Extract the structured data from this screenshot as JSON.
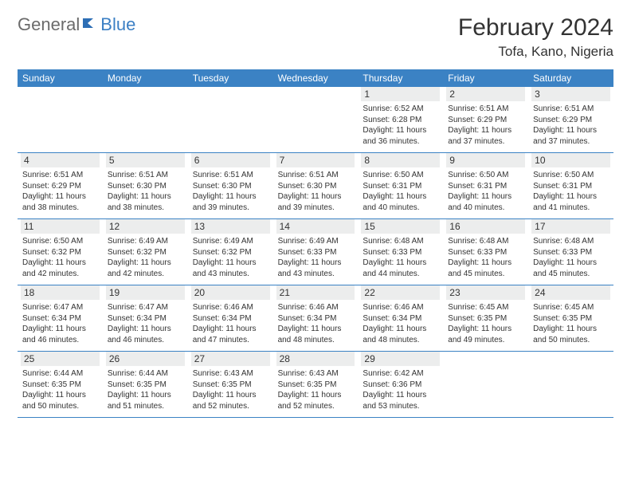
{
  "logo": {
    "part1": "General",
    "part2": "Blue"
  },
  "title": "February 2024",
  "location": "Tofa, Kano, Nigeria",
  "colors": {
    "header_bg": "#3b82c4",
    "header_text": "#ffffff",
    "daynum_bg": "#eceded",
    "border": "#3b82c4",
    "logo_gray": "#6b6b6b",
    "logo_blue": "#3b7fc4"
  },
  "day_headers": [
    "Sunday",
    "Monday",
    "Tuesday",
    "Wednesday",
    "Thursday",
    "Friday",
    "Saturday"
  ],
  "weeks": [
    [
      {
        "blank": true
      },
      {
        "blank": true
      },
      {
        "blank": true
      },
      {
        "blank": true
      },
      {
        "num": "1",
        "sunrise": "Sunrise: 6:52 AM",
        "sunset": "Sunset: 6:28 PM",
        "daylight": "Daylight: 11 hours and 36 minutes."
      },
      {
        "num": "2",
        "sunrise": "Sunrise: 6:51 AM",
        "sunset": "Sunset: 6:29 PM",
        "daylight": "Daylight: 11 hours and 37 minutes."
      },
      {
        "num": "3",
        "sunrise": "Sunrise: 6:51 AM",
        "sunset": "Sunset: 6:29 PM",
        "daylight": "Daylight: 11 hours and 37 minutes."
      }
    ],
    [
      {
        "num": "4",
        "sunrise": "Sunrise: 6:51 AM",
        "sunset": "Sunset: 6:29 PM",
        "daylight": "Daylight: 11 hours and 38 minutes."
      },
      {
        "num": "5",
        "sunrise": "Sunrise: 6:51 AM",
        "sunset": "Sunset: 6:30 PM",
        "daylight": "Daylight: 11 hours and 38 minutes."
      },
      {
        "num": "6",
        "sunrise": "Sunrise: 6:51 AM",
        "sunset": "Sunset: 6:30 PM",
        "daylight": "Daylight: 11 hours and 39 minutes."
      },
      {
        "num": "7",
        "sunrise": "Sunrise: 6:51 AM",
        "sunset": "Sunset: 6:30 PM",
        "daylight": "Daylight: 11 hours and 39 minutes."
      },
      {
        "num": "8",
        "sunrise": "Sunrise: 6:50 AM",
        "sunset": "Sunset: 6:31 PM",
        "daylight": "Daylight: 11 hours and 40 minutes."
      },
      {
        "num": "9",
        "sunrise": "Sunrise: 6:50 AM",
        "sunset": "Sunset: 6:31 PM",
        "daylight": "Daylight: 11 hours and 40 minutes."
      },
      {
        "num": "10",
        "sunrise": "Sunrise: 6:50 AM",
        "sunset": "Sunset: 6:31 PM",
        "daylight": "Daylight: 11 hours and 41 minutes."
      }
    ],
    [
      {
        "num": "11",
        "sunrise": "Sunrise: 6:50 AM",
        "sunset": "Sunset: 6:32 PM",
        "daylight": "Daylight: 11 hours and 42 minutes."
      },
      {
        "num": "12",
        "sunrise": "Sunrise: 6:49 AM",
        "sunset": "Sunset: 6:32 PM",
        "daylight": "Daylight: 11 hours and 42 minutes."
      },
      {
        "num": "13",
        "sunrise": "Sunrise: 6:49 AM",
        "sunset": "Sunset: 6:32 PM",
        "daylight": "Daylight: 11 hours and 43 minutes."
      },
      {
        "num": "14",
        "sunrise": "Sunrise: 6:49 AM",
        "sunset": "Sunset: 6:33 PM",
        "daylight": "Daylight: 11 hours and 43 minutes."
      },
      {
        "num": "15",
        "sunrise": "Sunrise: 6:48 AM",
        "sunset": "Sunset: 6:33 PM",
        "daylight": "Daylight: 11 hours and 44 minutes."
      },
      {
        "num": "16",
        "sunrise": "Sunrise: 6:48 AM",
        "sunset": "Sunset: 6:33 PM",
        "daylight": "Daylight: 11 hours and 45 minutes."
      },
      {
        "num": "17",
        "sunrise": "Sunrise: 6:48 AM",
        "sunset": "Sunset: 6:33 PM",
        "daylight": "Daylight: 11 hours and 45 minutes."
      }
    ],
    [
      {
        "num": "18",
        "sunrise": "Sunrise: 6:47 AM",
        "sunset": "Sunset: 6:34 PM",
        "daylight": "Daylight: 11 hours and 46 minutes."
      },
      {
        "num": "19",
        "sunrise": "Sunrise: 6:47 AM",
        "sunset": "Sunset: 6:34 PM",
        "daylight": "Daylight: 11 hours and 46 minutes."
      },
      {
        "num": "20",
        "sunrise": "Sunrise: 6:46 AM",
        "sunset": "Sunset: 6:34 PM",
        "daylight": "Daylight: 11 hours and 47 minutes."
      },
      {
        "num": "21",
        "sunrise": "Sunrise: 6:46 AM",
        "sunset": "Sunset: 6:34 PM",
        "daylight": "Daylight: 11 hours and 48 minutes."
      },
      {
        "num": "22",
        "sunrise": "Sunrise: 6:46 AM",
        "sunset": "Sunset: 6:34 PM",
        "daylight": "Daylight: 11 hours and 48 minutes."
      },
      {
        "num": "23",
        "sunrise": "Sunrise: 6:45 AM",
        "sunset": "Sunset: 6:35 PM",
        "daylight": "Daylight: 11 hours and 49 minutes."
      },
      {
        "num": "24",
        "sunrise": "Sunrise: 6:45 AM",
        "sunset": "Sunset: 6:35 PM",
        "daylight": "Daylight: 11 hours and 50 minutes."
      }
    ],
    [
      {
        "num": "25",
        "sunrise": "Sunrise: 6:44 AM",
        "sunset": "Sunset: 6:35 PM",
        "daylight": "Daylight: 11 hours and 50 minutes."
      },
      {
        "num": "26",
        "sunrise": "Sunrise: 6:44 AM",
        "sunset": "Sunset: 6:35 PM",
        "daylight": "Daylight: 11 hours and 51 minutes."
      },
      {
        "num": "27",
        "sunrise": "Sunrise: 6:43 AM",
        "sunset": "Sunset: 6:35 PM",
        "daylight": "Daylight: 11 hours and 52 minutes."
      },
      {
        "num": "28",
        "sunrise": "Sunrise: 6:43 AM",
        "sunset": "Sunset: 6:35 PM",
        "daylight": "Daylight: 11 hours and 52 minutes."
      },
      {
        "num": "29",
        "sunrise": "Sunrise: 6:42 AM",
        "sunset": "Sunset: 6:36 PM",
        "daylight": "Daylight: 11 hours and 53 minutes."
      },
      {
        "blank": true
      },
      {
        "blank": true
      }
    ]
  ]
}
